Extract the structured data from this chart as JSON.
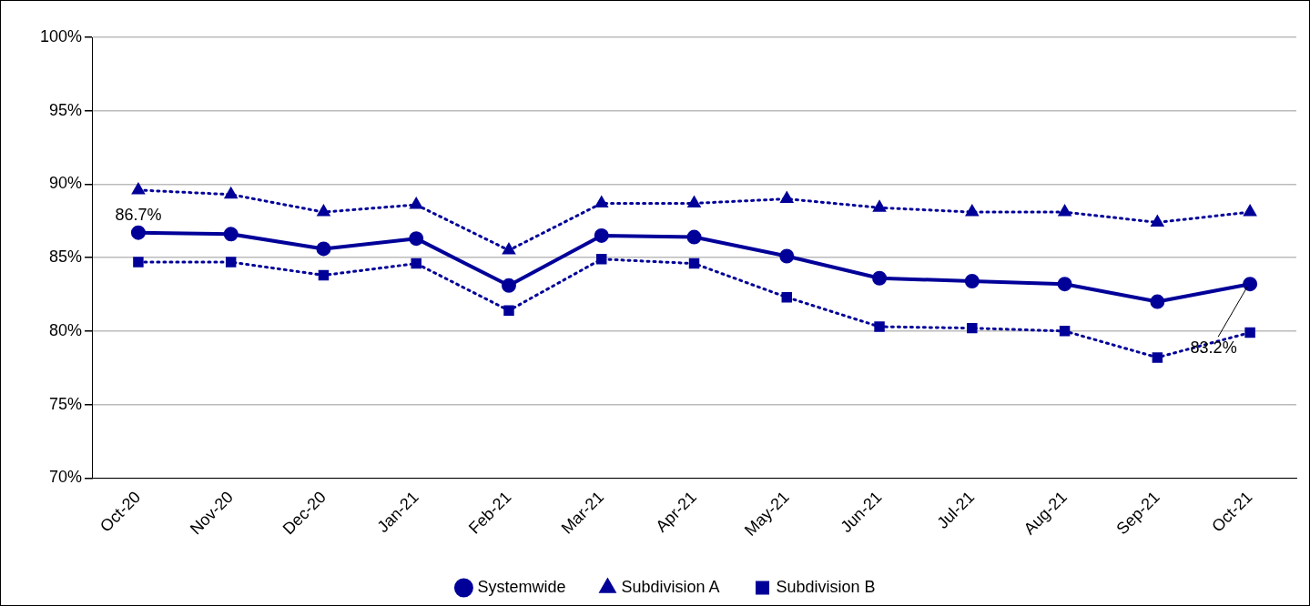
{
  "chart_data": {
    "type": "line",
    "categories": [
      "Oct-20",
      "Nov-20",
      "Dec-20",
      "Jan-21",
      "Feb-21",
      "Mar-21",
      "Apr-21",
      "May-21",
      "Jun-21",
      "Jul-21",
      "Aug-21",
      "Sep-21",
      "Oct-21"
    ],
    "series": [
      {
        "name": "Systemwide",
        "color": "#000099",
        "marker": "circle",
        "line_style": "solid",
        "values": [
          86.7,
          86.6,
          85.6,
          86.3,
          83.1,
          86.5,
          86.4,
          85.1,
          83.6,
          83.4,
          83.2,
          82.0,
          83.2
        ]
      },
      {
        "name": "Subdivision A",
        "color": "#000099",
        "marker": "triangle",
        "line_style": "dotted",
        "values": [
          89.6,
          89.3,
          88.1,
          88.6,
          85.5,
          88.7,
          88.7,
          89.0,
          88.4,
          88.1,
          88.1,
          87.4,
          88.1
        ]
      },
      {
        "name": "Subdivision B",
        "color": "#000099",
        "marker": "square",
        "line_style": "dotted",
        "values": [
          84.7,
          84.7,
          83.8,
          84.6,
          81.4,
          84.9,
          84.6,
          82.3,
          80.3,
          80.2,
          80.0,
          78.2,
          79.9
        ]
      }
    ],
    "ylim": [
      70,
      100
    ],
    "yticks": [
      {
        "value": 70,
        "label": "70%"
      },
      {
        "value": 75,
        "label": "75%"
      },
      {
        "value": 80,
        "label": "80%"
      },
      {
        "value": 85,
        "label": "85%"
      },
      {
        "value": 90,
        "label": "90%"
      },
      {
        "value": 95,
        "label": "95%"
      },
      {
        "value": 100,
        "label": "100%"
      }
    ],
    "grid": "y",
    "legend": "bottom",
    "annotations": [
      {
        "text": "86.7%",
        "x": "Oct-20",
        "y": 86.7
      },
      {
        "text": "83.2%",
        "x": "Oct-21",
        "y": 83.2
      }
    ]
  }
}
